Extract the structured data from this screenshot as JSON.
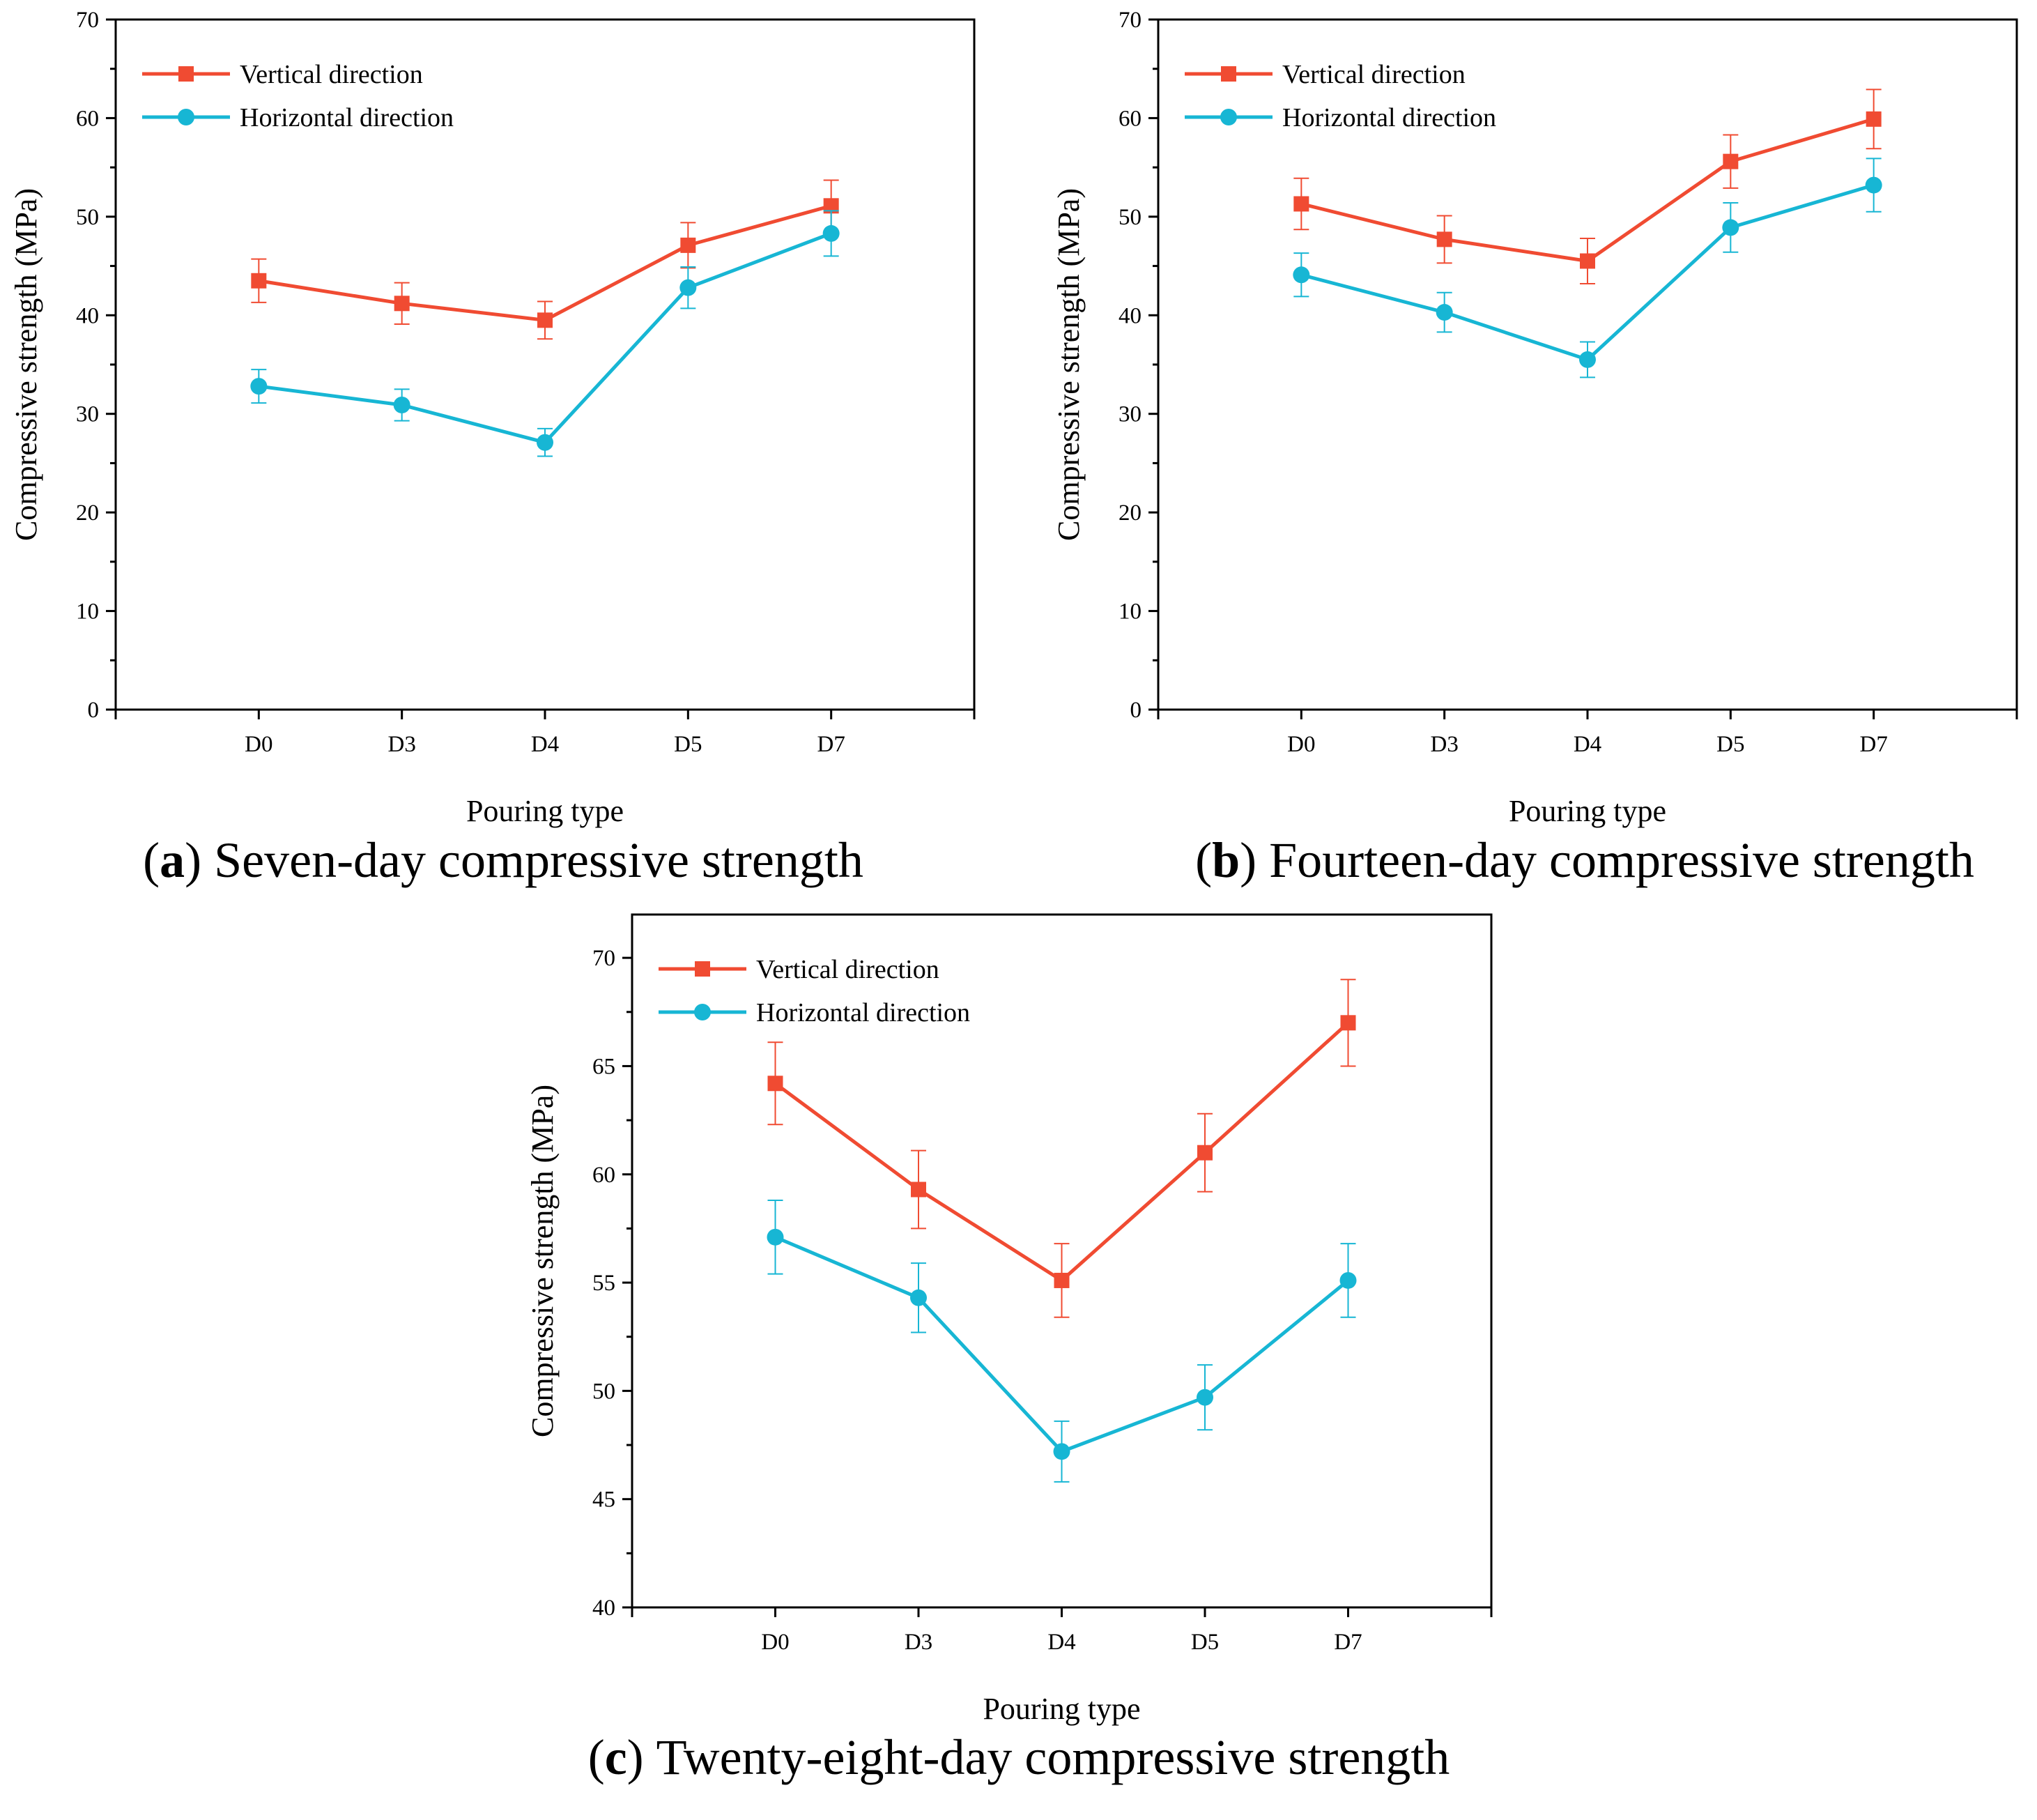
{
  "colors": {
    "vertical": "#f04b32",
    "horizontal": "#17b6d4",
    "axis": "#000000"
  },
  "chart_data": [
    {
      "type": "line",
      "caption_letter": "a",
      "caption_text": " Seven-day compressive strength",
      "xlabel": "Pouring type",
      "ylabel": "Compressive strength (MPa)",
      "categories": [
        "D0",
        "D3",
        "D4",
        "D5",
        "D7"
      ],
      "ylim": [
        0,
        70
      ],
      "yticks": [
        0,
        10,
        20,
        30,
        40,
        50,
        60,
        70
      ],
      "legend_position": "top-left",
      "series": [
        {
          "name": "Vertical direction",
          "marker": "square",
          "values": [
            43.5,
            41.2,
            39.5,
            47.1,
            51.1
          ],
          "errors": [
            2.2,
            2.1,
            1.9,
            2.3,
            2.6
          ]
        },
        {
          "name": "Horizontal direction",
          "marker": "circle",
          "values": [
            32.8,
            30.9,
            27.1,
            42.8,
            48.3
          ],
          "errors": [
            1.7,
            1.6,
            1.4,
            2.1,
            2.3
          ]
        }
      ]
    },
    {
      "type": "line",
      "caption_letter": "b",
      "caption_text": " Fourteen-day compressive strength",
      "xlabel": "Pouring type",
      "ylabel": "Compressive strength (MPa)",
      "categories": [
        "D0",
        "D3",
        "D4",
        "D5",
        "D7"
      ],
      "ylim": [
        0,
        70
      ],
      "yticks": [
        0,
        10,
        20,
        30,
        40,
        50,
        60,
        70
      ],
      "legend_position": "top-left",
      "series": [
        {
          "name": "Vertical direction",
          "marker": "square",
          "values": [
            51.3,
            47.7,
            45.5,
            55.6,
            59.9
          ],
          "errors": [
            2.6,
            2.4,
            2.3,
            2.7,
            3.0
          ]
        },
        {
          "name": "Horizontal direction",
          "marker": "circle",
          "values": [
            44.1,
            40.3,
            35.5,
            48.9,
            53.2
          ],
          "errors": [
            2.2,
            2.0,
            1.8,
            2.5,
            2.7
          ]
        }
      ]
    },
    {
      "type": "line",
      "caption_letter": "c",
      "caption_text": " Twenty-eight-day compressive strength",
      "xlabel": "Pouring type",
      "ylabel": "Compressive strength (MPa)",
      "categories": [
        "D0",
        "D3",
        "D4",
        "D5",
        "D7"
      ],
      "ylim": [
        40,
        72
      ],
      "yticks": [
        40,
        45,
        50,
        55,
        60,
        65,
        70
      ],
      "legend_position": "top-left",
      "series": [
        {
          "name": "Vertical direction",
          "marker": "square",
          "values": [
            64.2,
            59.3,
            55.1,
            61.0,
            67.0
          ],
          "errors": [
            1.9,
            1.8,
            1.7,
            1.8,
            2.0
          ]
        },
        {
          "name": "Horizontal direction",
          "marker": "circle",
          "values": [
            57.1,
            54.3,
            47.2,
            49.7,
            55.1
          ],
          "errors": [
            1.7,
            1.6,
            1.4,
            1.5,
            1.7
          ]
        }
      ]
    }
  ]
}
